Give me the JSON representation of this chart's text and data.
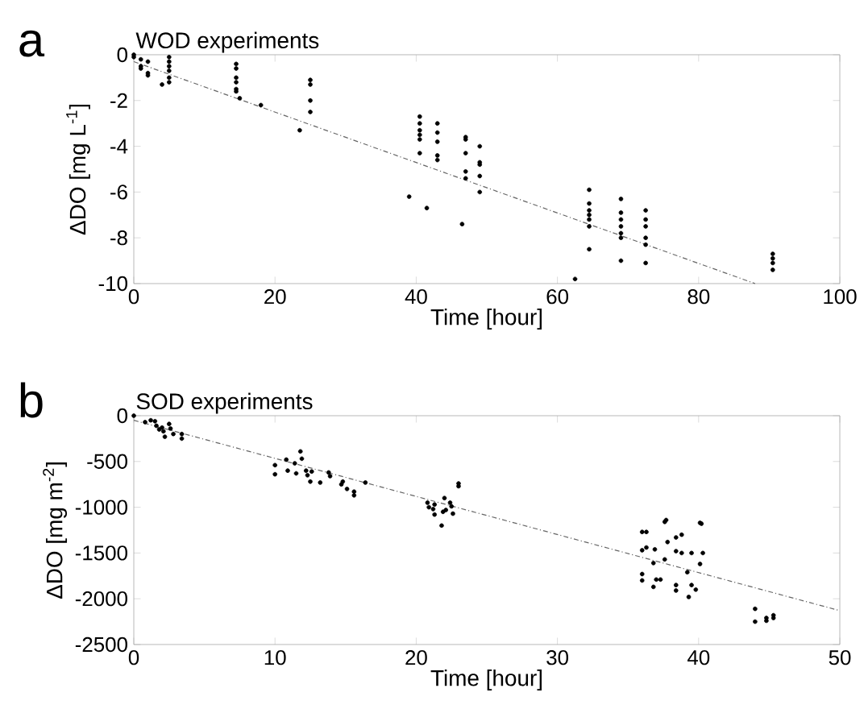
{
  "chart_data": [
    {
      "type": "scatter",
      "title": "WOD experiments",
      "xlabel": "Time [hour]",
      "ylabel": "ΔDO [mg L$^{-1}$]",
      "annotations": [
        "a"
      ],
      "marker": "circle",
      "xlim": [
        0,
        100
      ],
      "ylim": [
        -10,
        0
      ],
      "xticks": [
        0,
        20,
        40,
        60,
        80,
        100
      ],
      "yticks": [
        -10,
        -8,
        -6,
        -4,
        -2,
        0
      ],
      "series": [
        {
          "type": "scatter",
          "color": "#000000",
          "x": [
            0,
            0,
            1,
            1,
            1,
            2,
            2,
            2,
            4,
            5,
            5,
            5,
            5,
            5,
            5,
            14.5,
            14.5,
            14.5,
            14.5,
            14.5,
            14.5,
            15,
            18,
            23.5,
            25,
            25,
            25,
            25,
            39,
            40.5,
            40.5,
            40.5,
            40.5,
            40.5,
            40.5,
            41.5,
            43,
            43,
            43,
            43,
            43,
            46.5,
            47,
            47,
            47,
            47,
            47,
            49,
            49,
            49,
            49,
            49,
            62.5,
            64.5,
            64.5,
            64.5,
            64.5,
            64.5,
            64.5,
            64.5,
            69,
            69,
            69,
            69,
            69,
            69,
            69,
            72.5,
            72.5,
            72.5,
            72.5,
            72.5,
            72.5,
            90.5,
            90.5,
            90.5,
            90.5
          ],
          "values": [
            0,
            -0.1,
            -0.2,
            -0.5,
            -0.6,
            -0.3,
            -0.8,
            -0.9,
            -1.3,
            -0.1,
            -0.3,
            -0.5,
            -0.7,
            -1.0,
            -1.2,
            -0.4,
            -0.6,
            -1.0,
            -1.2,
            -1.5,
            -1.6,
            -1.9,
            -2.2,
            -3.3,
            -1.1,
            -1.3,
            -2.0,
            -2.5,
            -6.2,
            -2.7,
            -3.0,
            -3.3,
            -3.5,
            -3.7,
            -4.3,
            -6.7,
            -3.0,
            -3.4,
            -3.8,
            -4.4,
            -4.6,
            -7.4,
            -3.6,
            -3.7,
            -4.3,
            -5.1,
            -5.4,
            -4.0,
            -4.7,
            -4.8,
            -5.3,
            -6.0,
            -9.8,
            -5.9,
            -6.5,
            -6.8,
            -7.0,
            -7.2,
            -7.5,
            -8.5,
            -6.3,
            -6.9,
            -7.2,
            -7.5,
            -7.8,
            -8.0,
            -9.0,
            -6.8,
            -7.2,
            -7.5,
            -8.0,
            -8.3,
            -9.1,
            -8.7,
            -8.9,
            -9.1,
            -9.4
          ]
        },
        {
          "type": "line",
          "color": "#666666",
          "marker": "none",
          "line_style": "dashed",
          "x": [
            0,
            88
          ],
          "values": [
            -0.3,
            -10
          ]
        }
      ]
    },
    {
      "type": "scatter",
      "title": "SOD experiments",
      "xlabel": "Time [hour]",
      "ylabel": "ΔDO [mg m$^{-2}$]",
      "annotations": [
        "b"
      ],
      "marker": "circle",
      "xlim": [
        0,
        50
      ],
      "ylim": [
        -2500,
        0
      ],
      "xticks": [
        0,
        10,
        20,
        30,
        40,
        50
      ],
      "yticks": [
        -2500,
        -2000,
        -1500,
        -1000,
        -500,
        0
      ],
      "series": [
        {
          "type": "scatter",
          "color": "#000000",
          "x": [
            0,
            0.8,
            1.2,
            1.5,
            1.6,
            1.8,
            2,
            2.1,
            2.2,
            2.5,
            2.6,
            2.8,
            3.4,
            3.4,
            10,
            10,
            10.8,
            10.9,
            11.4,
            11.5,
            11.8,
            11.9,
            12.2,
            12.3,
            12.5,
            12.6,
            13.2,
            13.8,
            13.9,
            14.7,
            14.8,
            15.1,
            15.6,
            15.6,
            16.4,
            20.8,
            20.9,
            21.2,
            21.3,
            21.3,
            21.8,
            21.9,
            22,
            22.1,
            22.4,
            22.5,
            22.6,
            23,
            23,
            36.0,
            36.3,
            36.0,
            36.3,
            36.9,
            36.8,
            36.0,
            36.0,
            36.8,
            37.0,
            37.3,
            37.6,
            37.7,
            37.6,
            37.8,
            38.4,
            38.8,
            38.4,
            38.8,
            38.4,
            38.4,
            39.2,
            39.3,
            39.5,
            39.5,
            39.8,
            40.1,
            40.2,
            40.1,
            40.3,
            44.0,
            44.0,
            44.8,
            44.8,
            45.3,
            45.3
          ],
          "values": [
            0,
            -70,
            -50,
            -60,
            -110,
            -150,
            -130,
            -170,
            -230,
            -90,
            -140,
            -200,
            -200,
            -250,
            -540,
            -640,
            -480,
            -600,
            -520,
            -630,
            -390,
            -470,
            -600,
            -650,
            -720,
            -610,
            -730,
            -620,
            -660,
            -750,
            -720,
            -800,
            -830,
            -870,
            -730,
            -950,
            -1000,
            -1020,
            -970,
            -1080,
            -1200,
            -1050,
            -900,
            -1030,
            -950,
            -990,
            -1070,
            -740,
            -770,
            -1270,
            -1270,
            -1470,
            -1440,
            -1460,
            -1610,
            -1730,
            -1800,
            -1870,
            -1790,
            -1790,
            -1570,
            -1140,
            -1160,
            -1380,
            -1330,
            -1300,
            -1480,
            -1500,
            -1850,
            -1910,
            -1710,
            -1980,
            -1500,
            -1850,
            -1900,
            -1620,
            -1180,
            -1170,
            -1500,
            -2110,
            -2250,
            -2210,
            -2240,
            -2180,
            -2210
          ]
        },
        {
          "type": "line",
          "color": "#666666",
          "marker": "none",
          "line_style": "dashed",
          "x": [
            0,
            50
          ],
          "values": [
            -50,
            -2130
          ]
        }
      ]
    }
  ]
}
